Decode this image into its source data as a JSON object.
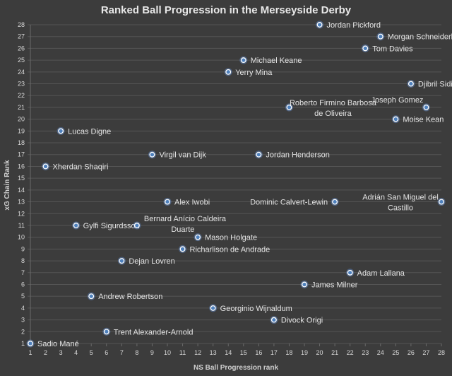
{
  "chart_data": {
    "type": "scatter",
    "title": "Ranked Ball Progression in the Merseyside Derby",
    "xlabel": "NS Ball Progression rank",
    "ylabel": "xG Chain Rank",
    "xlim": [
      1,
      28
    ],
    "ylim": [
      1,
      28
    ],
    "xticks": [
      1,
      2,
      3,
      4,
      5,
      6,
      7,
      8,
      9,
      10,
      11,
      12,
      13,
      14,
      15,
      16,
      17,
      18,
      19,
      20,
      21,
      22,
      23,
      24,
      25,
      26,
      27,
      28
    ],
    "yticks": [
      1,
      2,
      3,
      4,
      5,
      6,
      7,
      8,
      9,
      10,
      11,
      12,
      13,
      14,
      15,
      16,
      17,
      18,
      19,
      20,
      21,
      22,
      23,
      24,
      25,
      26,
      27,
      28
    ],
    "grid": true,
    "points": [
      {
        "name": "Sadio Mané",
        "x": 1,
        "y": 1,
        "label_side": "right"
      },
      {
        "name": "Xherdan Shaqiri",
        "x": 2,
        "y": 16,
        "label_side": "right"
      },
      {
        "name": "Lucas Digne",
        "x": 3,
        "y": 19,
        "label_side": "right"
      },
      {
        "name": "Gylfi Sigurdsson",
        "x": 4,
        "y": 11,
        "label_side": "right"
      },
      {
        "name": "Andrew Robertson",
        "x": 5,
        "y": 5,
        "label_side": "right"
      },
      {
        "name": "Trent Alexander-Arnold",
        "x": 6,
        "y": 2,
        "label_side": "right"
      },
      {
        "name": "Dejan Lovren",
        "x": 7,
        "y": 8,
        "label_side": "right"
      },
      {
        "name": "Bernard Anício Caldeira Duarte",
        "label_lines": [
          "Bernard Anício Caldeira",
          "Duarte"
        ],
        "x": 8,
        "y": 11,
        "label_side": "above-right"
      },
      {
        "name": "Virgil van Dijk",
        "x": 9,
        "y": 17,
        "label_side": "right"
      },
      {
        "name": "Alex Iwobi",
        "x": 10,
        "y": 13,
        "label_side": "right"
      },
      {
        "name": "Richarlison de Andrade",
        "x": 11,
        "y": 9,
        "label_side": "right"
      },
      {
        "name": "Mason Holgate",
        "x": 12,
        "y": 10,
        "label_side": "right"
      },
      {
        "name": "Georginio Wijnaldum",
        "x": 13,
        "y": 4,
        "label_side": "right"
      },
      {
        "name": "Yerry Mina",
        "x": 14,
        "y": 24,
        "label_side": "right"
      },
      {
        "name": "Michael Keane",
        "x": 15,
        "y": 25,
        "label_side": "right"
      },
      {
        "name": "Jordan Henderson",
        "x": 16,
        "y": 17,
        "label_side": "right"
      },
      {
        "name": "Divock Origi",
        "x": 17,
        "y": 3,
        "label_side": "right"
      },
      {
        "name": "Roberto Firmino Barbosa de Oliveira",
        "label_lines": [
          "Roberto Firmino Barbosa",
          "de Oliveira"
        ],
        "x": 18,
        "y": 21,
        "label_side": "right-centered"
      },
      {
        "name": "James Milner",
        "x": 19,
        "y": 6,
        "label_side": "right"
      },
      {
        "name": "Jordan Pickford",
        "x": 20,
        "y": 28,
        "label_side": "right"
      },
      {
        "name": "Dominic Calvert-Lewin",
        "x": 21,
        "y": 13,
        "label_side": "left"
      },
      {
        "name": "Adam Lallana",
        "x": 22,
        "y": 7,
        "label_side": "right"
      },
      {
        "name": "Tom Davies",
        "x": 23,
        "y": 26,
        "label_side": "right"
      },
      {
        "name": "Morgan Schneiderlin",
        "x": 24,
        "y": 27,
        "label_side": "right"
      },
      {
        "name": "Moise Kean",
        "x": 25,
        "y": 20,
        "label_side": "right"
      },
      {
        "name": "Djibril Sidibe",
        "x": 26,
        "y": 23,
        "label_side": "right"
      },
      {
        "name": "Joseph Gomez",
        "x": 27,
        "y": 21,
        "label_side": "above-left"
      },
      {
        "name": "Adrián San Miguel del Castillo",
        "label_lines": [
          "Adrián San Miguel del",
          "Castillo"
        ],
        "x": 28,
        "y": 13,
        "label_side": "left-centered"
      }
    ]
  },
  "colors": {
    "background": "#3c3c3c",
    "marker_fill": "#4f81bd",
    "marker_stroke": "#ffffff",
    "grid": "#555555",
    "text": "#e4e4e4"
  }
}
